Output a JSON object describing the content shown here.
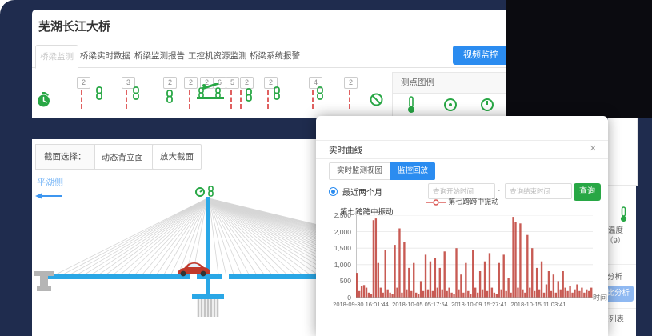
{
  "app": {
    "title": "芜湖长江大桥",
    "video_button": "视频监控"
  },
  "tabs": [
    {
      "label": "桥梁监测",
      "active": true
    },
    {
      "label": "桥梁实时数据",
      "active": false
    },
    {
      "label": "桥梁监测报告",
      "active": false
    },
    {
      "label": "工控机资源监测",
      "active": false
    },
    {
      "label": "桥梁系统报警",
      "active": false
    }
  ],
  "monitor_row": {
    "badges": [
      "2",
      "3",
      "2",
      "2",
      "2",
      "6",
      "5",
      "2",
      "2",
      "4",
      "2"
    ]
  },
  "legend_panel": {
    "title": "测点图例"
  },
  "section_bar": {
    "label": "截面选择：",
    "selected_option": "动态背立面",
    "dropdown_arrow": "▼",
    "zoom_button": "放大截面"
  },
  "bridge": {
    "side_label": "平湖侧"
  },
  "side_panel": {
    "temp_label": "温度",
    "temp_count": "（9）",
    "compare_title": "对比分析",
    "compare_button": "对比分析",
    "list_label": "测点列表"
  },
  "modal": {
    "title": "实时曲线",
    "close_icon": "✕",
    "tabs": [
      {
        "label": "实时监测视图"
      },
      {
        "label": "监控回放"
      }
    ],
    "radio_label": "最近两个月",
    "start_placeholder": "查询开始时间",
    "range_separator": "-",
    "end_placeholder": "查询结束时间",
    "query_button": "查询",
    "legend_label": "第七跨跨中振动"
  },
  "chart_data": {
    "type": "bar",
    "title": "第七跨跨中振动",
    "xlabel": "时间",
    "ylabel": "",
    "ylim": [
      0,
      2500
    ],
    "grid": true,
    "legend_position": "top",
    "series_color": "#c0443c",
    "yticks": [
      0,
      500,
      1000,
      1500,
      2000,
      2500
    ],
    "ytick_labels": [
      "0",
      "500",
      "1,000",
      "1,500",
      "2,000",
      "2,500"
    ],
    "xticks": [
      "2018-09-30 16:01:44",
      "2018-10-05 05:17:54",
      "2018-10-09 15:27:41",
      "2018-10-15 11:03:41"
    ],
    "values": [
      750,
      200,
      350,
      380,
      300,
      150,
      100,
      2350,
      2400,
      1050,
      300,
      150,
      1450,
      250,
      150,
      100,
      1600,
      300,
      2100,
      150,
      1700,
      250,
      900,
      200,
      1050,
      150,
      100,
      500,
      200,
      1300,
      250,
      1100,
      200,
      1200,
      300,
      900,
      250,
      1400,
      200,
      300,
      150,
      100,
      1500,
      250,
      700,
      150,
      1050,
      200,
      100,
      1450,
      300,
      150,
      800,
      250,
      1100,
      200,
      1350,
      300,
      150,
      100,
      1050,
      250,
      1300,
      200,
      600,
      150,
      2450,
      2300,
      300,
      2250,
      250,
      150,
      1900,
      300,
      1500,
      200,
      900,
      250,
      1100,
      150,
      400,
      800,
      200,
      700,
      150,
      500,
      250,
      800,
      300,
      200,
      350,
      150,
      250,
      400,
      200,
      300,
      150,
      250,
      200,
      300
    ]
  }
}
